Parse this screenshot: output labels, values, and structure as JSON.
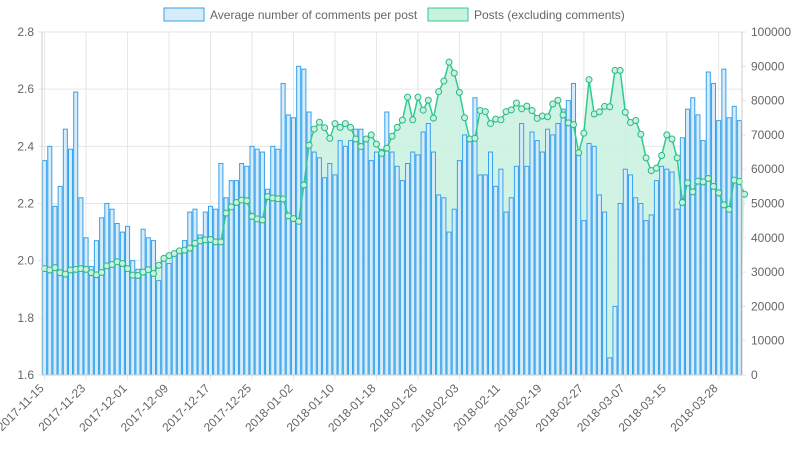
{
  "chart_data": {
    "type": "bar",
    "legend_position": "top",
    "grid": true,
    "colors": {
      "bar_fill": "#d6ecfa",
      "bar_stroke": "#36a2eb",
      "area_fill": "#c9f1df",
      "line_stroke": "#2ecc8f",
      "grid": "#e6e6e6",
      "axis_text": "#666666"
    },
    "y_left": {
      "min": 1.6,
      "max": 2.8,
      "ticks": [
        "1.6",
        "1.8",
        "2.0",
        "2.2",
        "2.4",
        "2.6",
        "2.8"
      ]
    },
    "y_right": {
      "min": 0,
      "max": 100000,
      "ticks": [
        "0",
        "10000",
        "20000",
        "30000",
        "40000",
        "50000",
        "60000",
        "70000",
        "80000",
        "90000",
        "100000"
      ]
    },
    "x_tick_labels": [
      "2017-11-15",
      "2017-11-23",
      "2017-12-01",
      "2017-12-09",
      "2017-12-17",
      "2017-12-25",
      "2018-01-02",
      "2018-01-10",
      "2018-01-18",
      "2018-01-26",
      "2018-02-03",
      "2018-02-11",
      "2018-02-19",
      "2018-02-27",
      "2018-03-07",
      "2018-03-15",
      "2018-03-28"
    ],
    "x_tick_indices": [
      0,
      8,
      16,
      24,
      32,
      40,
      48,
      56,
      64,
      72,
      80,
      88,
      96,
      104,
      112,
      120,
      130
    ],
    "series": [
      {
        "name": "Average number of comments per post",
        "kind": "bar",
        "axis": "left",
        "values": [
          2.35,
          2.4,
          2.19,
          2.26,
          2.46,
          2.39,
          2.59,
          2.22,
          2.08,
          1.98,
          2.07,
          2.15,
          2.2,
          2.18,
          2.13,
          2.1,
          2.12,
          2.0,
          1.97,
          2.11,
          2.08,
          2.07,
          1.93,
          2.0,
          1.99,
          2.02,
          2.04,
          2.07,
          2.17,
          2.18,
          2.09,
          2.17,
          2.19,
          2.18,
          2.34,
          2.22,
          2.28,
          2.28,
          2.34,
          2.33,
          2.4,
          2.39,
          2.38,
          2.25,
          2.4,
          2.39,
          2.62,
          2.51,
          2.5,
          2.68,
          2.67,
          2.52,
          2.38,
          2.36,
          2.29,
          2.34,
          2.3,
          2.42,
          2.4,
          2.42,
          2.46,
          2.46,
          2.42,
          2.35,
          2.38,
          2.39,
          2.52,
          2.38,
          2.33,
          2.28,
          2.34,
          2.38,
          2.37,
          2.45,
          2.48,
          2.38,
          2.23,
          2.22,
          2.1,
          2.18,
          2.35,
          2.44,
          2.42,
          2.57,
          2.3,
          2.3,
          2.38,
          2.26,
          2.32,
          2.17,
          2.22,
          2.33,
          2.48,
          2.33,
          2.45,
          2.42,
          2.38,
          2.46,
          2.44,
          2.48,
          2.53,
          2.56,
          2.62,
          2.37,
          2.14,
          2.41,
          2.4,
          2.23,
          2.17,
          1.66,
          1.84,
          2.2,
          2.32,
          2.3,
          2.22,
          2.2,
          2.14,
          2.16,
          2.28,
          2.33,
          2.32,
          2.31,
          2.18,
          2.43,
          2.53,
          2.57,
          2.51,
          2.42,
          2.66,
          2.62,
          2.49,
          2.67,
          2.5,
          2.54,
          2.49
        ]
      },
      {
        "name": "Posts (excluding comments)",
        "kind": "area-line",
        "axis": "right",
        "values": [
          31000,
          30600,
          31300,
          29800,
          29400,
          30600,
          30800,
          31000,
          30800,
          29800,
          29200,
          29900,
          31800,
          32200,
          33000,
          32500,
          31000,
          29100,
          29000,
          30000,
          30700,
          29600,
          32000,
          34000,
          34800,
          35400,
          36200,
          36400,
          37000,
          38400,
          39100,
          39400,
          39500,
          38800,
          38800,
          47200,
          49000,
          50300,
          51000,
          50800,
          46200,
          45500,
          45200,
          52000,
          51600,
          51400,
          51300,
          46400,
          45600,
          44800,
          55400,
          67000,
          71700,
          73700,
          72100,
          69000,
          73300,
          72200,
          73300,
          72200,
          68800,
          66600,
          68800,
          70000,
          67300,
          64600,
          66100,
          69600,
          72200,
          74300,
          81000,
          74400,
          81000,
          77200,
          80100,
          74900,
          82600,
          85700,
          91200,
          88000,
          82400,
          75000,
          68800,
          69000,
          77100,
          76800,
          73300,
          74600,
          74400,
          76800,
          77300,
          79300,
          77600,
          78400,
          77100,
          74800,
          75500,
          75300,
          79000,
          80100,
          75800,
          73500,
          73000,
          64800,
          70500,
          86100,
          76100,
          76700,
          78300,
          78200,
          88800,
          88800,
          76600,
          73600,
          74200,
          70200,
          63300,
          59600,
          60300,
          64000,
          70000,
          68800,
          63300,
          50300,
          56000,
          53400,
          56500,
          56300,
          57300,
          55000,
          53100,
          49600,
          48300,
          56800,
          56400,
          52700
        ]
      }
    ]
  }
}
